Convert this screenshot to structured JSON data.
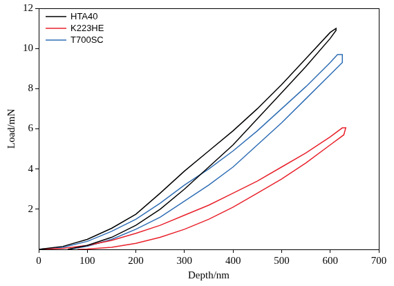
{
  "chart_data": {
    "type": "line",
    "x_label": "Depth/nm",
    "y_label": "Load/mN",
    "xlim": [
      0,
      700
    ],
    "xticks": [
      0,
      100,
      200,
      300,
      400,
      500,
      600,
      700
    ],
    "ylim": [
      0,
      12
    ],
    "yticks": [
      2,
      4,
      6,
      8,
      10,
      12
    ],
    "grid": false,
    "legend": "upper left",
    "series": [
      {
        "name": "HTA40",
        "color": "#000000",
        "x": [
          0,
          50,
          100,
          150,
          200,
          250,
          300,
          350,
          400,
          450,
          500,
          550,
          600,
          612,
          612,
          600,
          550,
          500,
          450,
          400,
          350,
          300,
          250,
          200,
          150,
          100,
          60
        ],
        "values": [
          0,
          0.15,
          0.5,
          1.05,
          1.75,
          2.8,
          3.9,
          4.9,
          5.9,
          7.0,
          8.2,
          9.5,
          10.8,
          11.0,
          10.9,
          10.5,
          9.1,
          7.8,
          6.5,
          5.2,
          4.1,
          3.0,
          2.0,
          1.2,
          0.6,
          0.2,
          0
        ]
      },
      {
        "name": "K223HE",
        "color": "#e8202a",
        "x": [
          0,
          50,
          100,
          150,
          200,
          250,
          300,
          350,
          400,
          450,
          500,
          550,
          600,
          625,
          632,
          628,
          600,
          550,
          500,
          450,
          400,
          350,
          300,
          250,
          200,
          150,
          100,
          80
        ],
        "values": [
          0,
          0.05,
          0.2,
          0.45,
          0.8,
          1.2,
          1.7,
          2.2,
          2.8,
          3.4,
          4.1,
          4.8,
          5.6,
          6.05,
          6.05,
          5.7,
          5.2,
          4.3,
          3.5,
          2.8,
          2.1,
          1.5,
          1.0,
          0.6,
          0.3,
          0.1,
          0.02,
          0
        ]
      },
      {
        "name": "T700SC",
        "color": "#2e6db4",
        "x": [
          0,
          50,
          100,
          150,
          200,
          250,
          300,
          350,
          400,
          450,
          500,
          550,
          600,
          615,
          625,
          625,
          600,
          550,
          500,
          450,
          400,
          350,
          300,
          250,
          200,
          150,
          100,
          60
        ],
        "values": [
          0,
          0.1,
          0.4,
          0.9,
          1.5,
          2.3,
          3.2,
          4.0,
          4.9,
          5.9,
          7.0,
          8.1,
          9.3,
          9.7,
          9.7,
          9.3,
          8.7,
          7.5,
          6.3,
          5.2,
          4.1,
          3.2,
          2.4,
          1.6,
          1.0,
          0.5,
          0.15,
          0
        ]
      }
    ]
  }
}
